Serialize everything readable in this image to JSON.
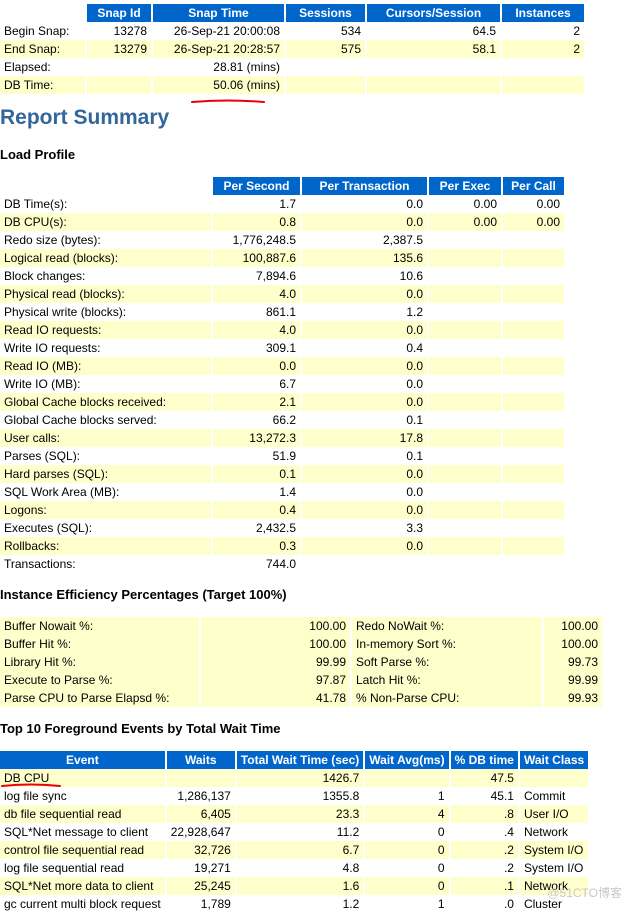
{
  "snap": {
    "headers": [
      "Snap Id",
      "Snap Time",
      "Sessions",
      "Cursors/Session",
      "Instances"
    ],
    "begin": {
      "label": "Begin Snap:",
      "id": "13278",
      "time": "26-Sep-21 20:00:08",
      "sessions": "534",
      "cursors": "64.5",
      "instances": "2"
    },
    "end": {
      "label": "End Snap:",
      "id": "13279",
      "time": "26-Sep-21 20:28:57",
      "sessions": "575",
      "cursors": "58.1",
      "instances": "2"
    },
    "elapsed": {
      "label": "Elapsed:",
      "value": "28.81 (mins)"
    },
    "db_time": {
      "label": "DB Time:",
      "value": "50.06 (mins)"
    }
  },
  "report_title": "Report Summary",
  "load_profile": {
    "title": "Load Profile",
    "headers": [
      "Per Second",
      "Per Transaction",
      "Per Exec",
      "Per Call"
    ],
    "rows": [
      {
        "label": "DB Time(s):",
        "ps": "1.7",
        "pt": "0.0",
        "pe": "0.00",
        "pc": "0.00"
      },
      {
        "label": "DB CPU(s):",
        "ps": "0.8",
        "pt": "0.0",
        "pe": "0.00",
        "pc": "0.00"
      },
      {
        "label": "Redo size (bytes):",
        "ps": "1,776,248.5",
        "pt": "2,387.5",
        "pe": "",
        "pc": ""
      },
      {
        "label": "Logical read (blocks):",
        "ps": "100,887.6",
        "pt": "135.6",
        "pe": "",
        "pc": ""
      },
      {
        "label": "Block changes:",
        "ps": "7,894.6",
        "pt": "10.6",
        "pe": "",
        "pc": ""
      },
      {
        "label": "Physical read (blocks):",
        "ps": "4.0",
        "pt": "0.0",
        "pe": "",
        "pc": ""
      },
      {
        "label": "Physical write (blocks):",
        "ps": "861.1",
        "pt": "1.2",
        "pe": "",
        "pc": ""
      },
      {
        "label": "Read IO requests:",
        "ps": "4.0",
        "pt": "0.0",
        "pe": "",
        "pc": ""
      },
      {
        "label": "Write IO requests:",
        "ps": "309.1",
        "pt": "0.4",
        "pe": "",
        "pc": ""
      },
      {
        "label": "Read IO (MB):",
        "ps": "0.0",
        "pt": "0.0",
        "pe": "",
        "pc": ""
      },
      {
        "label": "Write IO (MB):",
        "ps": "6.7",
        "pt": "0.0",
        "pe": "",
        "pc": ""
      },
      {
        "label": "Global Cache blocks received:",
        "ps": "2.1",
        "pt": "0.0",
        "pe": "",
        "pc": ""
      },
      {
        "label": "Global Cache blocks served:",
        "ps": "66.2",
        "pt": "0.1",
        "pe": "",
        "pc": ""
      },
      {
        "label": "User calls:",
        "ps": "13,272.3",
        "pt": "17.8",
        "pe": "",
        "pc": ""
      },
      {
        "label": "Parses (SQL):",
        "ps": "51.9",
        "pt": "0.1",
        "pe": "",
        "pc": ""
      },
      {
        "label": "Hard parses (SQL):",
        "ps": "0.1",
        "pt": "0.0",
        "pe": "",
        "pc": ""
      },
      {
        "label": "SQL Work Area (MB):",
        "ps": "1.4",
        "pt": "0.0",
        "pe": "",
        "pc": ""
      },
      {
        "label": "Logons:",
        "ps": "0.4",
        "pt": "0.0",
        "pe": "",
        "pc": ""
      },
      {
        "label": "Executes (SQL):",
        "ps": "2,432.5",
        "pt": "3.3",
        "pe": "",
        "pc": ""
      },
      {
        "label": "Rollbacks:",
        "ps": "0.3",
        "pt": "0.0",
        "pe": "",
        "pc": ""
      },
      {
        "label": "Transactions:",
        "ps": "744.0",
        "pt": "",
        "pe": "",
        "pc": ""
      }
    ]
  },
  "efficiency": {
    "title": "Instance Efficiency Percentages (Target 100%)",
    "rows": [
      {
        "l1": "Buffer Nowait %:",
        "v1": "100.00",
        "l2": "Redo NoWait %:",
        "v2": "100.00"
      },
      {
        "l1": "Buffer Hit %:",
        "v1": "100.00",
        "l2": "In-memory Sort %:",
        "v2": "100.00"
      },
      {
        "l1": "Library Hit %:",
        "v1": "99.99",
        "l2": "Soft Parse %:",
        "v2": "99.73"
      },
      {
        "l1": "Execute to Parse %:",
        "v1": "97.87",
        "l2": "Latch Hit %:",
        "v2": "99.99"
      },
      {
        "l1": "Parse CPU to Parse Elapsd %:",
        "v1": "41.78",
        "l2": "% Non-Parse CPU:",
        "v2": "99.93"
      }
    ]
  },
  "events": {
    "title": "Top 10 Foreground Events by Total Wait Time",
    "headers": [
      "Event",
      "Waits",
      "Total Wait Time (sec)",
      "Wait Avg(ms)",
      "% DB time",
      "Wait Class"
    ],
    "rows": [
      {
        "event": "DB CPU",
        "waits": "",
        "total": "1426.7",
        "avg": "",
        "pct": "47.5",
        "cls": ""
      },
      {
        "event": "log file sync",
        "waits": "1,286,137",
        "total": "1355.8",
        "avg": "1",
        "pct": "45.1",
        "cls": "Commit"
      },
      {
        "event": "db file sequential read",
        "waits": "6,405",
        "total": "23.3",
        "avg": "4",
        "pct": ".8",
        "cls": "User I/O"
      },
      {
        "event": "SQL*Net message to client",
        "waits": "22,928,647",
        "total": "11.2",
        "avg": "0",
        "pct": ".4",
        "cls": "Network"
      },
      {
        "event": "control file sequential read",
        "waits": "32,726",
        "total": "6.7",
        "avg": "0",
        "pct": ".2",
        "cls": "System I/O"
      },
      {
        "event": "log file sequential read",
        "waits": "19,271",
        "total": "4.8",
        "avg": "0",
        "pct": ".2",
        "cls": "System I/O"
      },
      {
        "event": "SQL*Net more data to client",
        "waits": "25,245",
        "total": "1.6",
        "avg": "0",
        "pct": ".1",
        "cls": "Network"
      },
      {
        "event": "gc current multi block request",
        "waits": "1,789",
        "total": "1.2",
        "avg": "1",
        "pct": ".0",
        "cls": "Cluster"
      }
    ]
  },
  "watermark": "@51CTO博客",
  "colors": {
    "header_bg": "#0066cc",
    "row_alt": "#ffffcc",
    "title": "#336699",
    "annotation": "#e8000b"
  }
}
